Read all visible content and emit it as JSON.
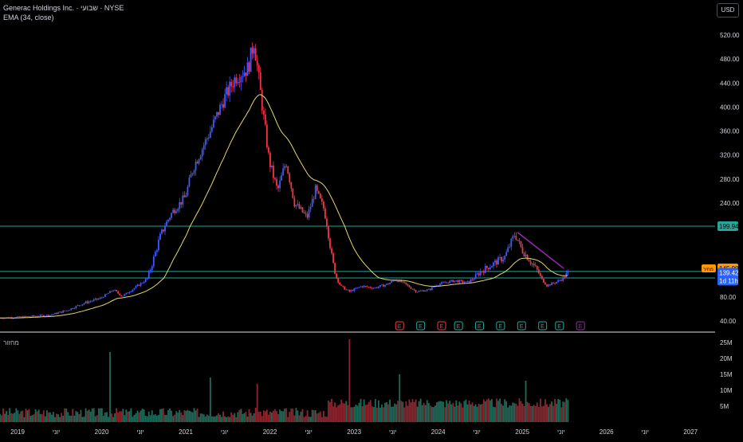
{
  "header": {
    "symbol_line": "Generac Holdings Inc. · שבועי · NYSE",
    "indicator_line": "EMA (34, close)",
    "currency": "USD"
  },
  "volume_pane": {
    "label": "מחזור"
  },
  "colors": {
    "background": "#000000",
    "up": "#3d5afe",
    "down": "#f23645",
    "ema": "#e6d96a",
    "level_line": "#26a69a",
    "trendline": "#9c27b0",
    "text": "#d1d4dc",
    "vol_up": "#1e6b5a",
    "vol_down": "#8e2630"
  },
  "chart_data": [
    {
      "type": "candlestick",
      "title": "Generac Holdings Inc. · שבועי · NYSE",
      "ylim": [
        0,
        550
      ],
      "y_ticks": [
        40,
        80,
        120,
        160,
        200,
        240,
        280,
        320,
        360,
        400,
        440,
        480,
        520
      ],
      "y_tick_labels_visible": [
        "520.00",
        "480.00",
        "440.00",
        "400.00",
        "360.00",
        "320.00",
        "280.00",
        "240.00",
        "80.00",
        "40.00"
      ],
      "x_labels": [
        "2019",
        "יוני",
        "2020",
        "יוני",
        "2021",
        "יוני",
        "2022",
        "יוני",
        "2023",
        "יוני",
        "2024",
        "יוני",
        "2025",
        "יוני",
        "2026",
        "יוני",
        "2027"
      ],
      "xlim": [
        2018.8,
        2027.3
      ],
      "price_path": [
        [
          2018.8,
          45
        ],
        [
          2019.0,
          46
        ],
        [
          2019.2,
          48
        ],
        [
          2019.4,
          50
        ],
        [
          2019.6,
          58
        ],
        [
          2019.8,
          70
        ],
        [
          2020.0,
          78
        ],
        [
          2020.15,
          100
        ],
        [
          2020.25,
          82
        ],
        [
          2020.4,
          105
        ],
        [
          2020.55,
          130
        ],
        [
          2020.7,
          185
        ],
        [
          2020.85,
          225
        ],
        [
          2021.0,
          250
        ],
        [
          2021.1,
          300
        ],
        [
          2021.2,
          330
        ],
        [
          2021.3,
          360
        ],
        [
          2021.45,
          410
        ],
        [
          2021.6,
          450
        ],
        [
          2021.75,
          465
        ],
        [
          2021.82,
          510
        ],
        [
          2021.9,
          420
        ],
        [
          2022.0,
          310
        ],
        [
          2022.1,
          260
        ],
        [
          2022.2,
          310
        ],
        [
          2022.3,
          240
        ],
        [
          2022.45,
          215
        ],
        [
          2022.55,
          262
        ],
        [
          2022.65,
          230
        ],
        [
          2022.75,
          155
        ],
        [
          2022.85,
          110
        ],
        [
          2022.95,
          95
        ],
        [
          2023.1,
          110
        ],
        [
          2023.25,
          105
        ],
        [
          2023.4,
          115
        ],
        [
          2023.5,
          128
        ],
        [
          2023.6,
          118
        ],
        [
          2023.75,
          95
        ],
        [
          2023.9,
          100
        ],
        [
          2024.0,
          115
        ],
        [
          2024.2,
          125
        ],
        [
          2024.35,
          120
        ],
        [
          2024.5,
          140
        ],
        [
          2024.65,
          150
        ],
        [
          2024.8,
          160
        ],
        [
          2024.92,
          190
        ],
        [
          2025.0,
          170
        ],
        [
          2025.1,
          155
        ],
        [
          2025.2,
          140
        ],
        [
          2025.3,
          112
        ],
        [
          2025.4,
          120
        ],
        [
          2025.5,
          132
        ],
        [
          2025.55,
          139.42
        ]
      ],
      "series": [
        {
          "name": "EMA (34, close)",
          "type": "line"
        }
      ],
      "horizontal_levels": [
        {
          "value": 199.94,
          "label": "199.94"
        },
        {
          "value": 140.93,
          "label": "140.93"
        },
        {
          "value": 132.5,
          "label": "132.50"
        }
      ],
      "price_tags": [
        {
          "value": 145.0,
          "label": "145.00",
          "prefix": "מחיר",
          "color": "#ff9800"
        },
        {
          "value": 139.42,
          "label": "139.42",
          "sub": "1d 11h",
          "color": "#2962ff"
        }
      ],
      "trendline": {
        "x": [
          2024.95,
          2025.5
        ],
        "y": [
          192,
          145
        ]
      },
      "events": [
        {
          "x": 2023.55,
          "label": "E",
          "kind": "miss"
        },
        {
          "x": 2023.8,
          "label": "E",
          "kind": "beat"
        },
        {
          "x": 2024.05,
          "label": "E",
          "kind": "miss"
        },
        {
          "x": 2024.25,
          "label": "E",
          "kind": "beat"
        },
        {
          "x": 2024.5,
          "label": "E",
          "kind": "beat"
        },
        {
          "x": 2024.75,
          "label": "E",
          "kind": "beat"
        },
        {
          "x": 2025.0,
          "label": "E",
          "kind": "beat"
        },
        {
          "x": 2025.25,
          "label": "E",
          "kind": "beat"
        },
        {
          "x": 2025.45,
          "label": "E",
          "kind": "beat"
        },
        {
          "x": 2025.7,
          "label": "E",
          "kind": "upcoming"
        }
      ]
    },
    {
      "type": "bar",
      "title": "מחזור",
      "ylim": [
        0,
        27
      ],
      "y_tick_labels": [
        "25M",
        "20M",
        "15M",
        "10M",
        "5M"
      ],
      "y_ticks": [
        25,
        20,
        15,
        10,
        5
      ],
      "spikes": [
        {
          "x": 2020.1,
          "value": 22
        },
        {
          "x": 2021.3,
          "value": 14
        },
        {
          "x": 2021.85,
          "value": 12
        },
        {
          "x": 2022.95,
          "value": 26
        },
        {
          "x": 2023.55,
          "value": 15
        },
        {
          "x": 2025.05,
          "value": 13
        }
      ]
    }
  ]
}
